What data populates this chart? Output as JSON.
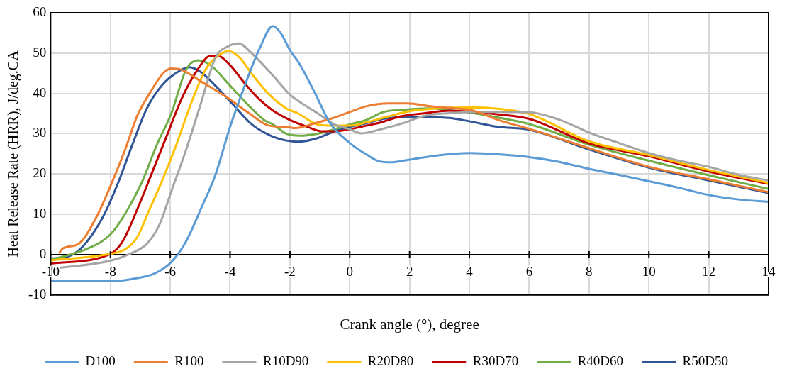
{
  "chart_data": {
    "type": "line",
    "xlabel": "Crank angle (°), degree",
    "ylabel": "Heat Release Rate (HRR), J/deg.CA",
    "xlim": [
      -10,
      14
    ],
    "xticks": [
      -10,
      -8,
      -6,
      -4,
      -2,
      0,
      2,
      4,
      6,
      8,
      10,
      12,
      14
    ],
    "ylim": [
      -10,
      60
    ],
    "yticks": [
      -10,
      0,
      10,
      20,
      30,
      40,
      50,
      60
    ],
    "grid": true,
    "legend": "bottom",
    "series": [
      {
        "name": "D100",
        "color": "#5b9bd5",
        "x": [
          -10,
          -8,
          -7.1,
          -6.53,
          -5.96,
          -5.47,
          -4.98,
          -4.49,
          -4,
          -3.51,
          -3.02,
          -2.57,
          -2.31,
          -1.98,
          -1.7,
          -1.17,
          -0.67,
          0,
          0.55,
          0.96,
          1.37,
          1.94,
          2.93,
          3.99,
          4.97,
          6,
          7,
          8,
          9,
          10,
          11,
          12,
          13,
          14
        ],
        "values": [
          -6.6,
          -6.6,
          -5.8,
          -4.7,
          -1.8,
          3.3,
          11.3,
          19.8,
          31.7,
          41.9,
          51,
          56.7,
          55,
          50.5,
          47.6,
          40.2,
          32.8,
          27.7,
          24.9,
          23.2,
          22.9,
          23.5,
          24.6,
          25.2,
          24.9,
          24.2,
          23,
          21.3,
          19.8,
          18.2,
          16.6,
          14.8,
          13.7,
          13.1
        ]
      },
      {
        "name": "R100",
        "color": "#ed7d31",
        "x": [
          -9.7,
          -9.6,
          -9.06,
          -8.49,
          -8,
          -7.51,
          -7.1,
          -6.69,
          -6.2,
          -5.96,
          -5.63,
          -4.98,
          -4,
          -3.35,
          -2.69,
          -2.12,
          -1.82,
          -1.17,
          -0.51,
          0,
          0.55,
          1.29,
          1.94,
          2.68,
          3.5,
          4.15,
          4.97,
          6,
          8,
          10,
          12,
          14
        ],
        "values": [
          0.5,
          1.5,
          2.7,
          9,
          17,
          26,
          34.5,
          40,
          45.3,
          46.2,
          45.9,
          43,
          38.5,
          35,
          32,
          31.7,
          31.4,
          32.6,
          34,
          35.4,
          36.8,
          37.5,
          37.5,
          36.8,
          36.3,
          35.7,
          33.4,
          31.2,
          26.4,
          21.8,
          18.7,
          15.5
        ]
      },
      {
        "name": "R10D90",
        "color": "#a5a5a5",
        "x": [
          -10,
          -8,
          -7.35,
          -6.78,
          -6.37,
          -5.96,
          -5.47,
          -4.98,
          -4.49,
          -4,
          -3.71,
          -3.27,
          -2.61,
          -2,
          -1.57,
          -1.08,
          -0.51,
          0,
          0.39,
          1.04,
          1.86,
          2.52,
          3.34,
          4.15,
          4.97,
          6,
          7,
          8,
          9,
          10,
          11,
          12,
          13,
          14
        ],
        "values": [
          -3.5,
          -1.5,
          0.2,
          2.7,
          7.3,
          15.8,
          26,
          37.4,
          48.8,
          51.9,
          52.4,
          49.9,
          44.8,
          39.7,
          37.4,
          35.1,
          32.3,
          31.1,
          30.1,
          31.1,
          32.8,
          34.5,
          35.1,
          35.4,
          35.4,
          35.3,
          33.5,
          30.3,
          27.7,
          25.2,
          23.3,
          21.8,
          19.8,
          18.4
        ]
      },
      {
        "name": "R20D80",
        "color": "#ffc000",
        "x": [
          -10,
          -8,
          -7.51,
          -7.1,
          -6.69,
          -6.29,
          -5.8,
          -5.31,
          -4.82,
          -4.41,
          -4.04,
          -3.67,
          -3.27,
          -2.69,
          -2.12,
          -1.74,
          -1.08,
          -0.51,
          0,
          0.55,
          1.29,
          2.1,
          2.93,
          4.15,
          4.81,
          6,
          8,
          10,
          12,
          14
        ],
        "values": [
          -1.4,
          0.2,
          1.3,
          4.4,
          11.3,
          18,
          27.2,
          37.4,
          45.9,
          49.3,
          50.5,
          48.8,
          44.8,
          39.7,
          36.3,
          35.1,
          32.3,
          32,
          32,
          32.8,
          34.3,
          35.7,
          36.3,
          36.5,
          36.3,
          34.9,
          28.1,
          24.7,
          21,
          17.8
        ]
      },
      {
        "name": "R30D70",
        "color": "#c00000",
        "x": [
          -10,
          -8,
          -7.59,
          -7.1,
          -6.61,
          -6.12,
          -5.63,
          -5.14,
          -4.65,
          -4.41,
          -4,
          -3.51,
          -3.02,
          -2.56,
          -2,
          -1.41,
          -0.92,
          -0.51,
          0,
          0.55,
          1.04,
          1.7,
          2.52,
          3.34,
          4.15,
          4.97,
          6,
          8,
          10,
          12,
          14
        ],
        "values": [
          -2.2,
          0.2,
          3.3,
          11.3,
          20.3,
          29.4,
          38.5,
          45.3,
          49.3,
          49.3,
          47,
          42.5,
          38.5,
          35.7,
          33.4,
          31.7,
          30.6,
          30.6,
          31.1,
          32,
          32.8,
          34.3,
          35.1,
          35.7,
          35.4,
          34.8,
          33.7,
          27.6,
          24.4,
          20.6,
          17.6
        ]
      },
      {
        "name": "R40D60",
        "color": "#70ad47",
        "x": [
          -10,
          -8.73,
          -8,
          -7.51,
          -6.94,
          -6.45,
          -5.96,
          -5.47,
          -5.06,
          -4.65,
          -4,
          -3.35,
          -2.86,
          -2.56,
          -2.12,
          -1.66,
          -1.08,
          -0.51,
          0,
          0.55,
          1.13,
          1.86,
          2.68,
          3.5,
          4.15,
          4.97,
          6,
          8,
          10,
          12,
          14
        ],
        "values": [
          -1.3,
          1.6,
          5,
          10.1,
          18.1,
          27.2,
          35.1,
          45.9,
          48.2,
          47,
          41.9,
          36.8,
          33.4,
          32.3,
          30,
          29.5,
          30,
          31.1,
          32.3,
          33.4,
          35.4,
          36,
          36.3,
          35.7,
          35.1,
          34,
          32.4,
          27.3,
          23.3,
          19.7,
          16.3
        ]
      },
      {
        "name": "R50D50",
        "color": "#2f5597",
        "x": [
          -10,
          -9.39,
          -8.9,
          -8.24,
          -7.76,
          -7.27,
          -6.78,
          -6.29,
          -5.8,
          -5.35,
          -4.98,
          -4.49,
          -3.92,
          -3.27,
          -2.61,
          -2.12,
          -1.74,
          -1.08,
          -0.51,
          0,
          0.55,
          1.13,
          1.86,
          2.68,
          3.34,
          3.99,
          4.97,
          6,
          8,
          10,
          12,
          14
        ],
        "values": [
          -1,
          -0.4,
          2.2,
          9.5,
          17.5,
          27.2,
          36.3,
          41.9,
          45.1,
          46.5,
          45.3,
          41.9,
          37.4,
          32.3,
          29.4,
          28.3,
          28,
          28.9,
          30.6,
          31.7,
          32.6,
          33.7,
          34.1,
          34.1,
          33.9,
          33.1,
          31.7,
          31,
          26.1,
          21.6,
          18.4,
          15.3
        ]
      }
    ]
  }
}
